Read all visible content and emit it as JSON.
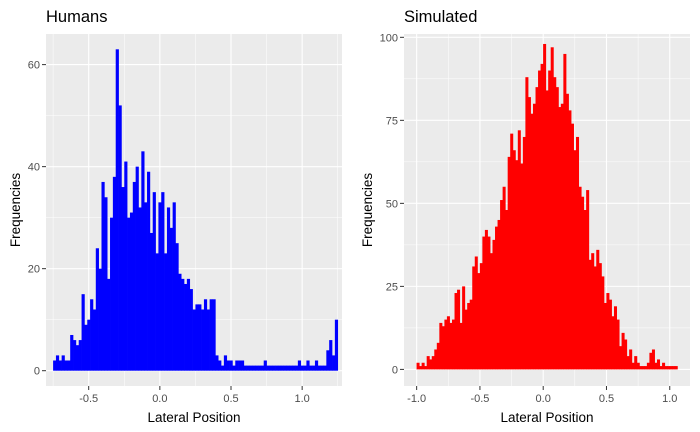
{
  "chart_data": [
    {
      "type": "bar",
      "title": "Humans",
      "xlabel": "Lateral Position",
      "ylabel": "Frequencies",
      "xlim": [
        -0.8,
        1.28
      ],
      "ylim": [
        -3,
        66
      ],
      "xticks": [
        "-0.5",
        "0.0",
        "0.5",
        "1.0"
      ],
      "yticks": [
        "0",
        "20",
        "40",
        "60"
      ],
      "bin_width": 0.0202,
      "fill_color": "#0000FF",
      "grid": true,
      "x": [
        -0.74,
        -0.72,
        -0.7,
        -0.68,
        -0.66,
        -0.64,
        -0.62,
        -0.6,
        -0.58,
        -0.56,
        -0.54,
        -0.52,
        -0.5,
        -0.48,
        -0.46,
        -0.44,
        -0.42,
        -0.4,
        -0.38,
        -0.36,
        -0.34,
        -0.32,
        -0.3,
        -0.28,
        -0.26,
        -0.24,
        -0.22,
        -0.2,
        -0.18,
        -0.16,
        -0.14,
        -0.12,
        -0.1,
        -0.08,
        -0.06,
        -0.04,
        -0.02,
        0.0,
        0.02,
        0.04,
        0.06,
        0.08,
        0.1,
        0.12,
        0.14,
        0.16,
        0.18,
        0.2,
        0.22,
        0.24,
        0.26,
        0.28,
        0.3,
        0.32,
        0.34,
        0.36,
        0.38,
        0.4,
        0.42,
        0.44,
        0.46,
        0.48,
        0.5,
        0.52,
        0.54,
        0.56,
        0.58,
        0.6,
        0.62,
        0.64,
        0.66,
        0.68,
        0.7,
        0.72,
        0.74,
        0.76,
        0.78,
        0.8,
        0.82,
        0.84,
        0.86,
        0.88,
        0.9,
        0.92,
        0.94,
        0.96,
        0.98,
        1.0,
        1.02,
        1.04,
        1.06,
        1.08,
        1.1,
        1.12,
        1.14,
        1.16,
        1.18,
        1.2,
        1.22,
        1.24
      ],
      "values": [
        2,
        3,
        2,
        3,
        2,
        2,
        7,
        6,
        5,
        6,
        15,
        9,
        10,
        14,
        12,
        24,
        20,
        37,
        34,
        18,
        30,
        38,
        63,
        52,
        36,
        41,
        30,
        31,
        37,
        40,
        32,
        43,
        33,
        39,
        27,
        35,
        23,
        33,
        35,
        23,
        32,
        28,
        33,
        25,
        19,
        18,
        17,
        18,
        16,
        12,
        13,
        13,
        12,
        14,
        12,
        14,
        14,
        3,
        2,
        1,
        3,
        2,
        2,
        1,
        2,
        2,
        2,
        1,
        1,
        1,
        1,
        1,
        1,
        1,
        2,
        1,
        1,
        1,
        1,
        1,
        1,
        1,
        1,
        1,
        1,
        1,
        2,
        1,
        1,
        2,
        1,
        1,
        2,
        1,
        1,
        1,
        4,
        6,
        3,
        10
      ]
    },
    {
      "type": "bar",
      "title": "Simulated",
      "xlabel": "Lateral Position",
      "ylabel": "Frequencies",
      "xlim": [
        -1.1,
        1.16
      ],
      "ylim": [
        -5,
        101
      ],
      "xticks": [
        "-1.0",
        "-0.5",
        "0.0",
        "0.5",
        "1.0"
      ],
      "yticks": [
        "0",
        "25",
        "50",
        "75",
        "100"
      ],
      "bin_width": 0.0215,
      "fill_color": "#FF0000",
      "grid": true,
      "x": [
        -0.99,
        -0.97,
        -0.95,
        -0.93,
        -0.91,
        -0.89,
        -0.87,
        -0.85,
        -0.83,
        -0.81,
        -0.79,
        -0.77,
        -0.75,
        -0.73,
        -0.71,
        -0.69,
        -0.67,
        -0.65,
        -0.63,
        -0.61,
        -0.59,
        -0.57,
        -0.55,
        -0.53,
        -0.51,
        -0.49,
        -0.47,
        -0.45,
        -0.43,
        -0.41,
        -0.39,
        -0.37,
        -0.35,
        -0.33,
        -0.31,
        -0.29,
        -0.27,
        -0.25,
        -0.23,
        -0.21,
        -0.19,
        -0.17,
        -0.15,
        -0.13,
        -0.11,
        -0.09,
        -0.07,
        -0.05,
        -0.03,
        -0.01,
        0.01,
        0.03,
        0.05,
        0.07,
        0.09,
        0.11,
        0.13,
        0.15,
        0.17,
        0.19,
        0.21,
        0.23,
        0.25,
        0.27,
        0.29,
        0.31,
        0.33,
        0.35,
        0.37,
        0.39,
        0.41,
        0.43,
        0.45,
        0.47,
        0.49,
        0.51,
        0.53,
        0.55,
        0.57,
        0.59,
        0.61,
        0.63,
        0.65,
        0.67,
        0.69,
        0.71,
        0.73,
        0.75,
        0.77,
        0.79,
        0.81,
        0.83,
        0.85,
        0.87,
        0.89,
        0.91,
        0.93,
        0.95,
        0.97,
        0.99,
        1.01,
        1.03,
        1.05
      ],
      "values": [
        2,
        1,
        2,
        1,
        4,
        3,
        4,
        6,
        8,
        14,
        13,
        15,
        16,
        14,
        15,
        23,
        24,
        14,
        25,
        18,
        20,
        21,
        31,
        34,
        29,
        32,
        40,
        42,
        40,
        35,
        39,
        43,
        45,
        51,
        55,
        48,
        64,
        71,
        66,
        63,
        72,
        62,
        70,
        88,
        82,
        77,
        80,
        85,
        90,
        92,
        98,
        84,
        90,
        97,
        88,
        85,
        79,
        80,
        95,
        83,
        78,
        74,
        66,
        70,
        55,
        52,
        48,
        54,
        33,
        35,
        31,
        36,
        32,
        28,
        20,
        23,
        21,
        16,
        19,
        15,
        7,
        11,
        9,
        4,
        6,
        2,
        4,
        2,
        1,
        1,
        1,
        2,
        5,
        6,
        2,
        3,
        1,
        2,
        1,
        1,
        1,
        1,
        1
      ]
    }
  ]
}
